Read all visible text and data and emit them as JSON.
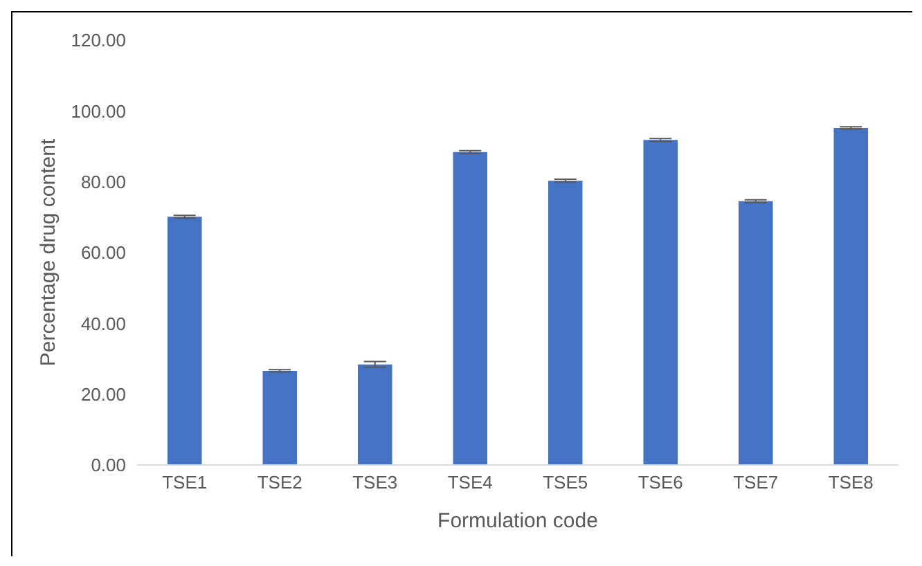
{
  "chart_data": {
    "type": "bar",
    "xlabel": "Formulation code",
    "ylabel": "Percentage drug content",
    "categories": [
      "TSE1",
      "TSE2",
      "TSE3",
      "TSE4",
      "TSE5",
      "TSE6",
      "TSE7",
      "TSE8"
    ],
    "values": [
      70.1,
      26.6,
      28.4,
      88.4,
      80.3,
      91.8,
      74.5,
      95.2
    ],
    "errors": [
      0.4,
      0.3,
      0.8,
      0.4,
      0.4,
      0.4,
      0.4,
      0.3
    ],
    "color": "#4472c4",
    "ylim": [
      0,
      120
    ],
    "yticks": [
      {
        "value": 0,
        "label": "0.00"
      },
      {
        "value": 20,
        "label": "20.00"
      },
      {
        "value": 40,
        "label": "40.00"
      },
      {
        "value": 60,
        "label": "60.00"
      },
      {
        "value": 80,
        "label": "80.00"
      },
      {
        "value": 100,
        "label": "100.00"
      },
      {
        "value": 120,
        "label": "120.00"
      }
    ],
    "grid": false
  }
}
